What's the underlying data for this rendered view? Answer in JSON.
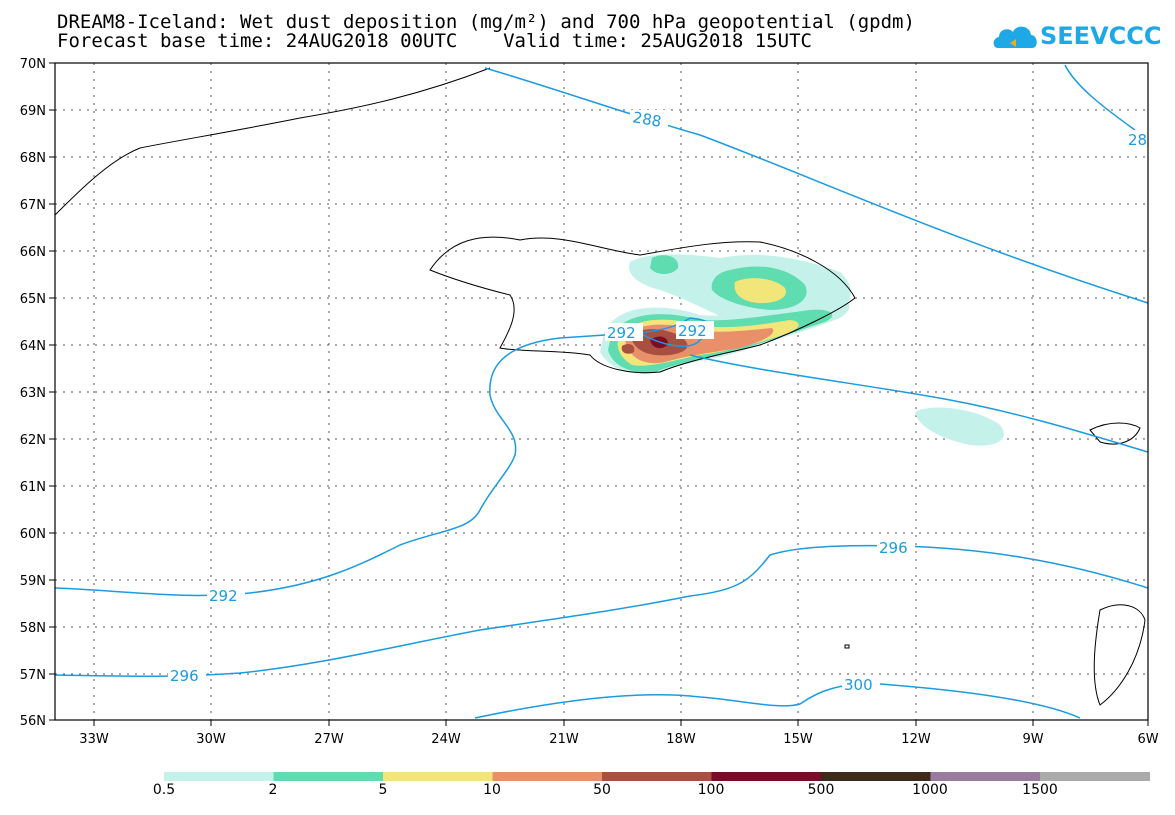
{
  "header": {
    "title_line1": "DREAM8-Iceland: Wet dust deposition (mg/m²) and 700 hPa geopotential (gpdm)",
    "title_line2": "Forecast base time: 24AUG2018 00UTC    Valid time: 25AUG2018 15UTC"
  },
  "logo": {
    "text": "SEEVCCC",
    "icon": "cloud-icon",
    "color": "#1fa8e6"
  },
  "map": {
    "lat_labels": [
      "70N",
      "69N",
      "68N",
      "67N",
      "66N",
      "65N",
      "64N",
      "63N",
      "62N",
      "61N",
      "60N",
      "59N",
      "58N",
      "57N",
      "56N"
    ],
    "lon_labels": [
      "33W",
      "30W",
      "27W",
      "24W",
      "21W",
      "18W",
      "15W",
      "12W",
      "9W",
      "6W"
    ],
    "contour_color": "#1b9be0",
    "contour_labels": [
      "288",
      "292",
      "292",
      "292",
      "296",
      "296",
      "300",
      "28",
      "296"
    ]
  },
  "colorbar": {
    "colors": [
      "#c4f2ea",
      "#5fdcb0",
      "#f2e67a",
      "#e9906a",
      "#a8503f",
      "#7a0c2a",
      "#3e2a1a",
      "#9a7a9f",
      "#aaaaaa"
    ],
    "labels": [
      "0.5",
      "2",
      "5",
      "10",
      "50",
      "100",
      "500",
      "1000",
      "1500"
    ]
  }
}
